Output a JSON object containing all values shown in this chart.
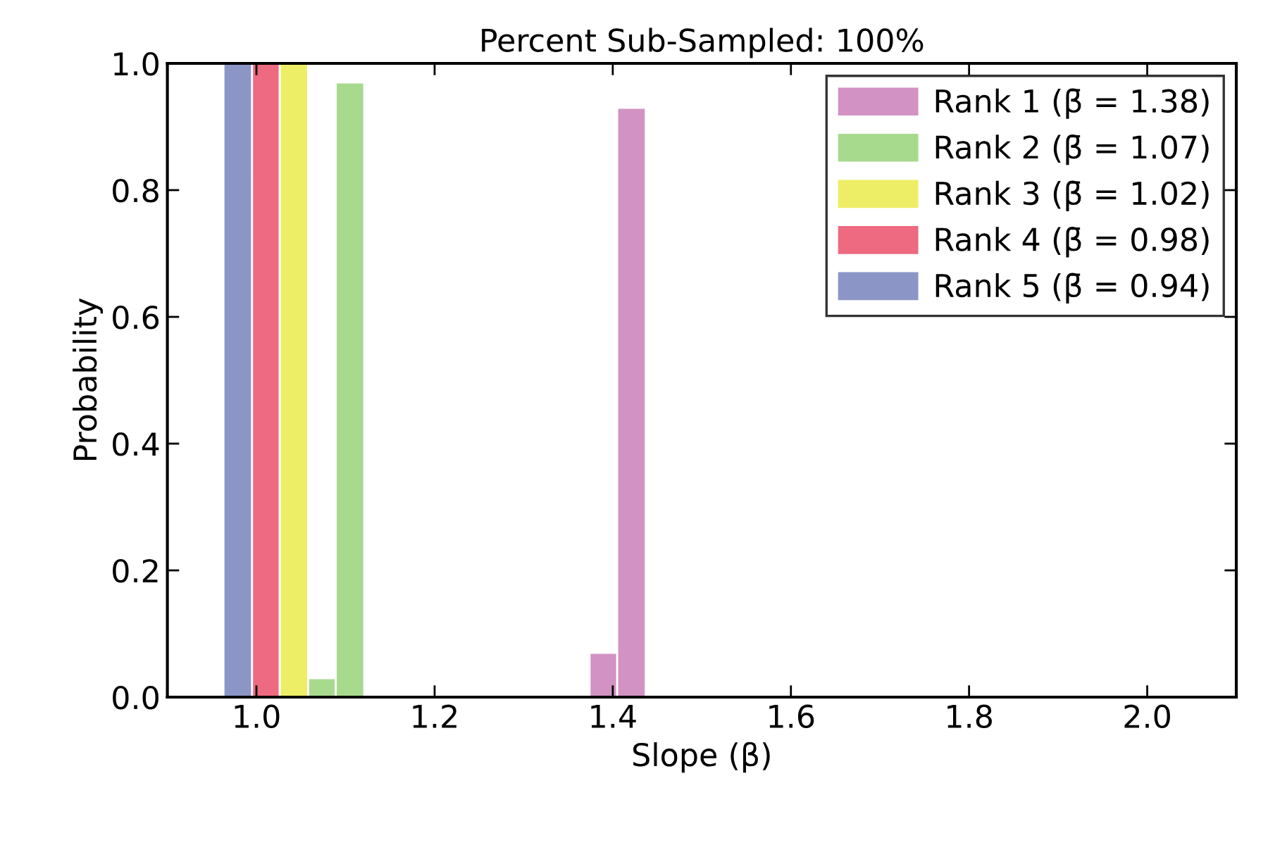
{
  "chart_data": {
    "type": "histogram",
    "title": "Percent Sub-Sampled: 100%",
    "xlabel": "Slope (β)",
    "ylabel": "Probability",
    "xlim": [
      0.9,
      2.1
    ],
    "ylim": [
      0,
      1.0
    ],
    "xticks": [
      {
        "value": 1.0,
        "label": "1.0"
      },
      {
        "value": 1.2,
        "label": "1.2"
      },
      {
        "value": 1.4,
        "label": "1.4"
      },
      {
        "value": 1.6,
        "label": "1.6"
      },
      {
        "value": 1.8,
        "label": "1.8"
      },
      {
        "value": 2.0,
        "label": "2.0"
      }
    ],
    "yticks": [
      {
        "value": 0,
        "label": "0.0"
      },
      {
        "value": 0.2,
        "label": "0.2"
      },
      {
        "value": 0.4,
        "label": "0.4"
      },
      {
        "value": 0.6,
        "label": "0.6"
      },
      {
        "value": 0.8,
        "label": "0.8"
      },
      {
        "value": 1.0,
        "label": "1.0"
      }
    ],
    "grid": false,
    "legend": "top right",
    "bins": [
      0.963,
      0.995,
      1.026,
      1.058,
      1.089,
      1.121,
      1.374,
      1.405,
      1.437
    ],
    "series": [
      {
        "name": "Rank 1 (β̄ = 1.38)",
        "color": "#d292c3",
        "values": [
          null,
          null,
          null,
          null,
          null,
          null,
          0.07,
          0.93
        ]
      },
      {
        "name": "Rank 2 (β̄ = 1.07)",
        "color": "#a8da8e",
        "values": [
          null,
          null,
          null,
          0.03,
          0.97,
          null,
          null,
          null
        ]
      },
      {
        "name": "Rank 3 (β̄ = 1.02)",
        "color": "#eeee66",
        "values": [
          null,
          null,
          1.0,
          null,
          null,
          null,
          null,
          null
        ]
      },
      {
        "name": "Rank 4 (β̄ = 0.98)",
        "color": "#ee6a80",
        "values": [
          null,
          1.0,
          null,
          null,
          null,
          null,
          null,
          null
        ]
      },
      {
        "name": "Rank 5 (β̄ = 0.94)",
        "color": "#8c96c6",
        "values": [
          1.0,
          null,
          null,
          null,
          null,
          null,
          null,
          null
        ]
      }
    ]
  }
}
